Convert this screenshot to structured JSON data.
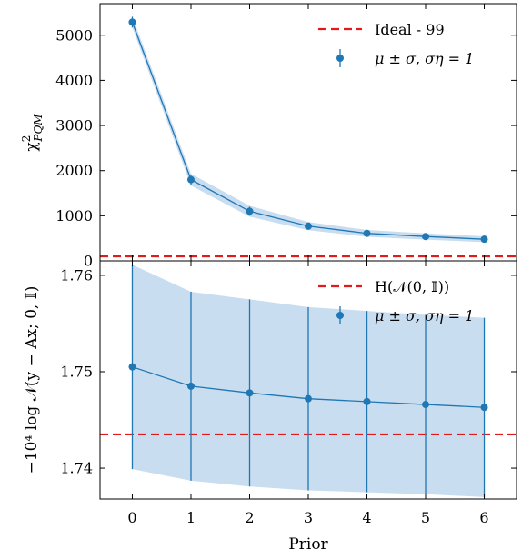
{
  "chart_data": [
    {
      "type": "line",
      "panel": "top",
      "xlabel": "",
      "ylabel": "χ²PQM",
      "ylabel_parts": {
        "base": "χ",
        "superscript": "2",
        "subscript": "PQM"
      },
      "ylim": [
        0,
        5700
      ],
      "y_ticks": [
        0,
        1000,
        2000,
        3000,
        4000,
        5000
      ],
      "y_tick_labels": [
        "0",
        "1000",
        "2000",
        "3000",
        "4000",
        "5000"
      ],
      "x": [
        0,
        1,
        2,
        3,
        4,
        5,
        6
      ],
      "series": [
        {
          "name": "μ ± σ, ση = 1",
          "y": [
            5290,
            1800,
            1100,
            770,
            610,
            540,
            480
          ],
          "yerr": [
            120,
            110,
            100,
            80,
            60,
            50,
            45
          ],
          "band": [
            120,
            130,
            120,
            90,
            75,
            70,
            65
          ],
          "color": "#1f77b4",
          "band_color": "#c6dbef"
        }
      ],
      "reference_line": {
        "name": "Ideal - 99",
        "y": 99,
        "color": "#e31a1c",
        "style": "dashed"
      },
      "legend": {
        "position": "top-right",
        "entries": [
          "Ideal - 99",
          "μ ± σ, ση = 1"
        ]
      }
    },
    {
      "type": "line",
      "panel": "bottom",
      "xlabel": "Prior",
      "ylabel": "−10⁴ log 𝒩(y − Ax; 0, 𝕀)",
      "ylim": [
        1.7368,
        1.7615
      ],
      "xlim": [
        -0.55,
        6.55
      ],
      "y_ticks": [
        1.74,
        1.75,
        1.76
      ],
      "y_tick_labels": [
        "1.74",
        "1.75",
        "1.76"
      ],
      "x_ticks": [
        0,
        1,
        2,
        3,
        4,
        5,
        6
      ],
      "x_tick_labels": [
        "0",
        "1",
        "2",
        "3",
        "4",
        "5",
        "6"
      ],
      "x": [
        0,
        1,
        2,
        3,
        4,
        5,
        6
      ],
      "series": [
        {
          "name": "μ ± σ, ση = 1",
          "y": [
            1.7505,
            1.7485,
            1.7478,
            1.7472,
            1.7469,
            1.7466,
            1.7463
          ],
          "yerr": [
            0.0106,
            0.0098,
            0.0097,
            0.0095,
            0.0094,
            0.0093,
            0.0093
          ],
          "color": "#1f77b4",
          "band_color": "#c6dbef"
        }
      ],
      "reference_line": {
        "name": "H(𝒩(0, 𝕀))",
        "y": 1.7435,
        "color": "#e31a1c",
        "style": "dashed"
      },
      "legend": {
        "position": "top-right",
        "entries": [
          "H(𝒩(0, 𝕀))",
          "μ ± σ, ση = 1"
        ]
      }
    }
  ]
}
